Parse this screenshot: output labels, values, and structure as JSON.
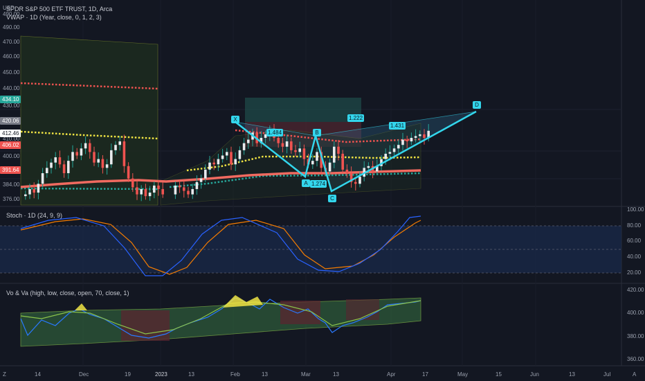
{
  "header": {
    "currency": "USD",
    "symbol_title": "SPDR S&P 500 ETF TRUST, 1D, Arca",
    "vwap_title": "VWAP · 1D (Year, close, 0, 1, 2, 3)"
  },
  "price_axis": {
    "ticks": [
      "490.00",
      "470.00",
      "460.00",
      "450.00",
      "440.00",
      "430.00",
      "420.00",
      "410.00",
      "400.00",
      "384.00",
      "376.00"
    ],
    "tags": [
      {
        "text": "434.10",
        "color": "#26a69a"
      },
      {
        "text": "420.06",
        "color": "#787b86"
      },
      {
        "text": "412.46",
        "color": "#ffffff"
      },
      {
        "text": "406.02",
        "color": "#ef5350"
      },
      {
        "text": "391.64",
        "color": "#ef5350"
      }
    ]
  },
  "pattern_labels": {
    "x": "X",
    "a": "A",
    "b": "B",
    "c": "C",
    "d": "D",
    "ab": "1.484",
    "bc": "1.274",
    "xd": "1.222",
    "cd": "1.431"
  },
  "stoch": {
    "title": "Stoch · 1D (24, 9, 9)",
    "ticks": [
      "100.00",
      "80.00",
      "60.00",
      "40.00",
      "20.00"
    ]
  },
  "vova": {
    "title": "Vo & Va (high, low, close, open, 70, close, 1)",
    "ticks": [
      "420.00",
      "400.00",
      "380.00",
      "360.00"
    ]
  },
  "time_axis": {
    "ticks": [
      "14",
      "Dec",
      "19",
      "2023",
      "13",
      "Feb",
      "13",
      "Mar",
      "13",
      "Apr",
      "17",
      "May",
      "15",
      "Jun",
      "13",
      "Jul"
    ],
    "tz": "Z",
    "auto": "A"
  },
  "chart_data": {
    "type": "candlestick",
    "colors": {
      "up": "#26a69a",
      "down": "#ef5350",
      "bg": "#131722",
      "vwap_upper": "#ef5350",
      "vwap_mid": "#f0e443",
      "vwap_lower": "#26a69a",
      "ema": "#f06a60",
      "pattern": "#33d6ec",
      "stoch_k": "#2962ff",
      "stoch_d": "#f57c00"
    },
    "closes": [
      380,
      383,
      381,
      386,
      392,
      395,
      398,
      401,
      397,
      392,
      399,
      404,
      402,
      406,
      409,
      404,
      398,
      400,
      395,
      397,
      405,
      408,
      410,
      396,
      389,
      384,
      380,
      383,
      379,
      381,
      385,
      383,
      380,
      385,
      384,
      382,
      380,
      383,
      387,
      389,
      394,
      398,
      397,
      400,
      402,
      404,
      397,
      400,
      405,
      409,
      411,
      415,
      409,
      412,
      414,
      416,
      412,
      409,
      407,
      410,
      405,
      404,
      406,
      400,
      397,
      399,
      404,
      395,
      393,
      398,
      407,
      403,
      394,
      392,
      387,
      386,
      390,
      395,
      396,
      393,
      396,
      400,
      403,
      404,
      406,
      408,
      411,
      410,
      412,
      413,
      414,
      412,
      416
    ],
    "vwap_bands": {
      "upper": 442,
      "mid_pre": 411,
      "mid_post": 400,
      "lower": 383
    },
    "harmonic_pattern": {
      "points": [
        {
          "label": "X",
          "price": 417
        },
        {
          "label": "A",
          "price": 392
        },
        {
          "label": "B",
          "price": 412
        },
        {
          "label": "C",
          "price": 378
        },
        {
          "label": "D",
          "price": 427
        }
      ],
      "ratios": {
        "AB": 1.484,
        "BC": 1.274,
        "XD": 1.222,
        "CD": 1.431
      }
    },
    "stoch_levels": [
      80,
      50,
      20
    ],
    "stoch_ylim": [
      0,
      100
    ],
    "price_ylim": [
      370,
      495
    ]
  }
}
